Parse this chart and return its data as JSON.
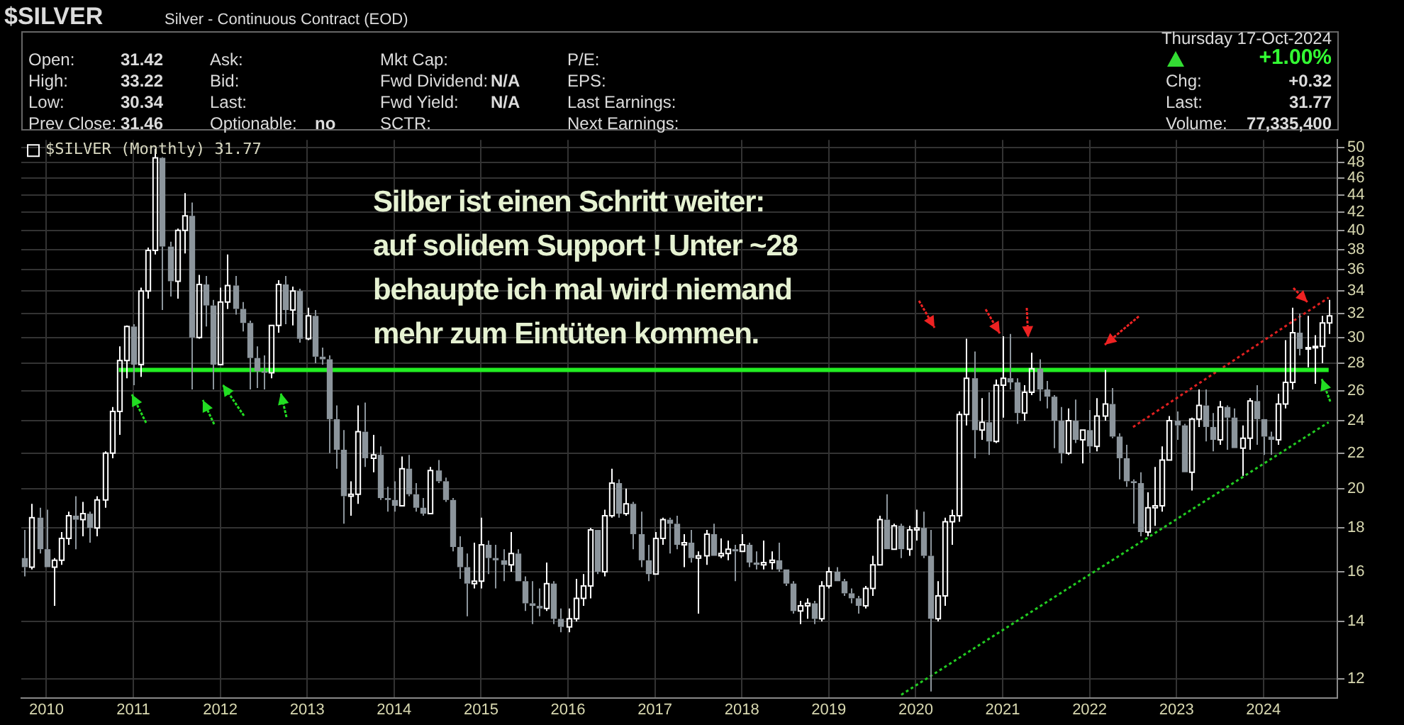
{
  "chart_data": {
    "type": "candlestick",
    "title": "$SILVER",
    "subtitle": "Silver - Continuous Contract (EOD)",
    "annotations": [
      "Silber ist einen Schritt weiter:\nauf solidem Support ! Unter ~28\nbehaupte ich mal wird niemand\nmehr zum Eintüten kommen.",
      "Open:",
      "31.42",
      "High:",
      "33.22",
      "Low:",
      "30.34",
      "Prev Close:",
      "31.46",
      "Ask:",
      "Bid:",
      "Last:",
      "Optionable:",
      "no",
      "Mkt Cap:",
      "Fwd Dividend:",
      "N/A",
      "Fwd Yield:",
      "N/A",
      "SCTR:",
      "P/E:",
      "EPS:",
      "Last Earnings:",
      "Next Earnings:",
      "Thursday 17-Oct-2024",
      "+1.00%",
      "Chg:",
      "+0.32",
      "Last:",
      "31.77",
      "Volume:",
      "77,335,400"
    ],
    "xlim": [
      "2009-09-17",
      "2024-11-07"
    ],
    "xticks": [
      {
        "value": "2010-01",
        "label": "2010"
      },
      {
        "value": "2011-01",
        "label": "2011"
      },
      {
        "value": "2012-01",
        "label": "2012"
      },
      {
        "value": "2013-01",
        "label": "2013"
      },
      {
        "value": "2014-01",
        "label": "2014"
      },
      {
        "value": "2015-01",
        "label": "2015"
      },
      {
        "value": "2016-01",
        "label": "2016"
      },
      {
        "value": "2017-01",
        "label": "2017"
      },
      {
        "value": "2018-01",
        "label": "2018"
      },
      {
        "value": "2019-01",
        "label": "2019"
      },
      {
        "value": "2020-01",
        "label": "2020"
      },
      {
        "value": "2021-01",
        "label": "2021"
      },
      {
        "value": "2022-01",
        "label": "2022"
      },
      {
        "value": "2023-01",
        "label": "2023"
      },
      {
        "value": "2024-01",
        "label": "2024"
      }
    ],
    "ylim": [
      11.4,
      51
    ],
    "yticks": [
      12,
      14,
      16,
      18,
      20,
      22,
      24,
      26,
      28,
      30,
      32,
      34,
      36,
      38,
      40,
      42,
      44,
      46,
      48,
      50
    ],
    "log": true,
    "grid": true,
    "legend": "top left",
    "marker": "none",
    "series": [
      {
        "name": "$SILVER (Monthly) 31.77",
        "x": [
          "2009-10",
          "2009-11",
          "2009-12",
          "2010-01",
          "2010-02",
          "2010-03",
          "2010-04",
          "2010-05",
          "2010-06",
          "2010-07",
          "2010-08",
          "2010-09",
          "2010-10",
          "2010-11",
          "2010-12",
          "2011-01",
          "2011-02",
          "2011-03",
          "2011-04",
          "2011-05",
          "2011-06",
          "2011-07",
          "2011-08",
          "2011-09",
          "2011-10",
          "2011-11",
          "2011-12",
          "2012-01",
          "2012-02",
          "2012-03",
          "2012-04",
          "2012-05",
          "2012-06",
          "2012-07",
          "2012-08",
          "2012-09",
          "2012-10",
          "2012-11",
          "2012-12",
          "2013-01",
          "2013-02",
          "2013-03",
          "2013-04",
          "2013-05",
          "2013-06",
          "2013-07",
          "2013-08",
          "2013-09",
          "2013-10",
          "2013-11",
          "2013-12",
          "2014-01",
          "2014-02",
          "2014-03",
          "2014-04",
          "2014-05",
          "2014-06",
          "2014-07",
          "2014-08",
          "2014-09",
          "2014-10",
          "2014-11",
          "2014-12",
          "2015-01",
          "2015-02",
          "2015-03",
          "2015-04",
          "2015-05",
          "2015-06",
          "2015-07",
          "2015-08",
          "2015-09",
          "2015-10",
          "2015-11",
          "2015-12",
          "2016-01",
          "2016-02",
          "2016-03",
          "2016-04",
          "2016-05",
          "2016-06",
          "2016-07",
          "2016-08",
          "2016-09",
          "2016-10",
          "2016-11",
          "2016-12",
          "2017-01",
          "2017-02",
          "2017-03",
          "2017-04",
          "2017-05",
          "2017-06",
          "2017-07",
          "2017-08",
          "2017-09",
          "2017-10",
          "2017-11",
          "2017-12",
          "2018-01",
          "2018-02",
          "2018-03",
          "2018-04",
          "2018-05",
          "2018-06",
          "2018-07",
          "2018-08",
          "2018-09",
          "2018-10",
          "2018-11",
          "2018-12",
          "2019-01",
          "2019-02",
          "2019-03",
          "2019-04",
          "2019-05",
          "2019-06",
          "2019-07",
          "2019-08",
          "2019-09",
          "2019-10",
          "2019-11",
          "2019-12",
          "2020-01",
          "2020-02",
          "2020-03",
          "2020-04",
          "2020-05",
          "2020-06",
          "2020-07",
          "2020-08",
          "2020-09",
          "2020-10",
          "2020-11",
          "2020-12",
          "2021-01",
          "2021-02",
          "2021-03",
          "2021-04",
          "2021-05",
          "2021-06",
          "2021-07",
          "2021-08",
          "2021-09",
          "2021-10",
          "2021-11",
          "2021-12",
          "2022-01",
          "2022-02",
          "2022-03",
          "2022-04",
          "2022-05",
          "2022-06",
          "2022-07",
          "2022-08",
          "2022-09",
          "2022-10",
          "2022-11",
          "2022-12",
          "2023-01",
          "2023-02",
          "2023-03",
          "2023-04",
          "2023-05",
          "2023-06",
          "2023-07",
          "2023-08",
          "2023-09",
          "2023-10",
          "2023-11",
          "2023-12",
          "2024-01",
          "2024-02",
          "2024-03",
          "2024-04",
          "2024-05",
          "2024-06",
          "2024-07",
          "2024-08",
          "2024-09",
          "2024-10"
        ],
        "ohlc": [
          [
            16.6,
            17.9,
            15.8,
            16.2
          ],
          [
            16.2,
            19.2,
            16.1,
            18.5
          ],
          [
            18.5,
            19.0,
            16.8,
            17.0
          ],
          [
            17.0,
            18.9,
            16.2,
            16.2
          ],
          [
            16.2,
            16.6,
            14.6,
            16.5
          ],
          [
            16.5,
            17.8,
            16.3,
            17.5
          ],
          [
            17.5,
            18.8,
            17.2,
            18.6
          ],
          [
            18.6,
            19.6,
            17.0,
            18.4
          ],
          [
            18.4,
            19.3,
            17.6,
            18.7
          ],
          [
            18.7,
            18.8,
            17.3,
            18.0
          ],
          [
            18.0,
            19.6,
            17.6,
            19.4
          ],
          [
            19.4,
            22.1,
            19.0,
            22.0
          ],
          [
            22.0,
            24.9,
            21.7,
            24.6
          ],
          [
            24.6,
            29.3,
            23.1,
            28.2
          ],
          [
            28.2,
            31.0,
            26.9,
            30.9
          ],
          [
            30.9,
            31.1,
            26.4,
            27.9
          ],
          [
            27.9,
            34.3,
            27.0,
            34.0
          ],
          [
            34.0,
            38.2,
            33.3,
            37.9
          ],
          [
            37.9,
            49.8,
            37.5,
            48.6
          ],
          [
            48.6,
            48.7,
            32.3,
            38.3
          ],
          [
            38.3,
            38.8,
            33.5,
            34.9
          ],
          [
            34.9,
            40.2,
            33.3,
            40.0
          ],
          [
            40.0,
            44.2,
            37.6,
            41.6
          ],
          [
            41.6,
            43.1,
            26.1,
            30.0
          ],
          [
            30.0,
            35.5,
            29.9,
            34.6
          ],
          [
            34.6,
            35.4,
            30.9,
            32.7
          ],
          [
            32.7,
            33.2,
            26.1,
            27.9
          ],
          [
            27.9,
            34.3,
            27.9,
            33.0
          ],
          [
            33.0,
            37.5,
            32.4,
            34.5
          ],
          [
            34.5,
            35.4,
            31.9,
            32.4
          ],
          [
            32.4,
            33.0,
            30.5,
            31.2
          ],
          [
            31.2,
            31.4,
            26.1,
            28.4
          ],
          [
            28.4,
            29.3,
            26.2,
            27.4
          ],
          [
            27.4,
            28.6,
            26.1,
            27.3
          ],
          [
            27.3,
            31.0,
            26.9,
            31.0
          ],
          [
            31.0,
            35.0,
            30.4,
            34.6
          ],
          [
            34.6,
            35.4,
            31.1,
            32.3
          ],
          [
            32.3,
            34.4,
            31.0,
            34.0
          ],
          [
            34.0,
            34.2,
            29.6,
            29.9
          ],
          [
            29.9,
            32.5,
            29.8,
            31.8
          ],
          [
            31.8,
            32.3,
            28.0,
            28.5
          ],
          [
            28.5,
            29.2,
            27.9,
            28.3
          ],
          [
            28.3,
            28.6,
            22.0,
            24.1
          ],
          [
            24.1,
            25.0,
            21.1,
            22.2
          ],
          [
            22.2,
            23.4,
            18.2,
            19.6
          ],
          [
            19.6,
            20.4,
            18.6,
            19.7
          ],
          [
            19.7,
            25.0,
            19.2,
            23.3
          ],
          [
            23.3,
            25.2,
            21.2,
            21.7
          ],
          [
            21.7,
            23.1,
            20.9,
            21.9
          ],
          [
            21.9,
            22.4,
            19.4,
            19.5
          ],
          [
            19.5,
            20.1,
            18.8,
            19.4
          ],
          [
            19.4,
            20.4,
            18.8,
            19.1
          ],
          [
            19.1,
            21.8,
            19.1,
            21.1
          ],
          [
            21.1,
            21.9,
            19.6,
            19.7
          ],
          [
            19.7,
            20.3,
            18.8,
            19.0
          ],
          [
            19.0,
            19.5,
            18.6,
            18.7
          ],
          [
            18.7,
            21.2,
            18.7,
            21.0
          ],
          [
            21.0,
            21.6,
            20.3,
            20.4
          ],
          [
            20.4,
            20.6,
            19.3,
            19.4
          ],
          [
            19.4,
            19.5,
            16.9,
            17.1
          ],
          [
            17.1,
            17.6,
            15.7,
            16.2
          ],
          [
            16.2,
            16.8,
            14.2,
            15.5
          ],
          [
            15.5,
            17.3,
            15.3,
            15.6
          ],
          [
            15.6,
            18.5,
            15.3,
            17.2
          ],
          [
            17.2,
            17.4,
            15.9,
            16.6
          ],
          [
            16.6,
            17.2,
            15.3,
            16.5
          ],
          [
            16.5,
            17.0,
            15.6,
            16.3
          ],
          [
            16.3,
            17.8,
            16.0,
            16.8
          ],
          [
            16.8,
            17.0,
            15.6,
            15.6
          ],
          [
            15.6,
            15.8,
            14.4,
            14.7
          ],
          [
            14.7,
            15.6,
            13.9,
            14.6
          ],
          [
            14.6,
            15.3,
            14.2,
            14.5
          ],
          [
            14.5,
            16.4,
            14.4,
            15.5
          ],
          [
            15.5,
            15.6,
            13.9,
            14.1
          ],
          [
            14.1,
            14.5,
            13.6,
            13.8
          ],
          [
            13.8,
            14.5,
            13.6,
            14.1
          ],
          [
            14.1,
            15.7,
            14.0,
            14.9
          ],
          [
            14.9,
            15.9,
            14.6,
            15.4
          ],
          [
            15.4,
            18.0,
            14.9,
            17.9
          ],
          [
            17.9,
            17.9,
            15.9,
            16.0
          ],
          [
            16.0,
            18.9,
            15.8,
            18.6
          ],
          [
            18.6,
            21.1,
            18.5,
            20.3
          ],
          [
            20.3,
            20.5,
            18.5,
            18.7
          ],
          [
            18.7,
            20.0,
            18.6,
            19.2
          ],
          [
            19.2,
            19.3,
            17.0,
            17.7
          ],
          [
            17.7,
            18.8,
            16.2,
            16.5
          ],
          [
            16.5,
            17.2,
            15.6,
            15.9
          ],
          [
            15.9,
            17.8,
            15.9,
            17.5
          ],
          [
            17.5,
            18.5,
            17.2,
            18.4
          ],
          [
            18.4,
            18.5,
            16.8,
            18.2
          ],
          [
            18.2,
            18.6,
            17.0,
            17.2
          ],
          [
            17.2,
            17.7,
            16.2,
            17.3
          ],
          [
            17.3,
            17.9,
            16.4,
            16.6
          ],
          [
            16.6,
            16.9,
            14.3,
            16.7
          ],
          [
            16.7,
            17.9,
            16.3,
            17.7
          ],
          [
            17.7,
            18.2,
            16.7,
            16.7
          ],
          [
            16.7,
            17.5,
            16.6,
            16.8
          ],
          [
            16.8,
            17.4,
            16.5,
            17.0
          ],
          [
            17.0,
            17.2,
            15.6,
            16.9
          ],
          [
            16.9,
            17.7,
            16.9,
            17.2
          ],
          [
            17.2,
            17.3,
            16.2,
            16.4
          ],
          [
            16.4,
            16.9,
            16.1,
            16.3
          ],
          [
            16.3,
            17.4,
            16.1,
            16.4
          ],
          [
            16.4,
            16.9,
            16.1,
            16.5
          ],
          [
            16.5,
            17.3,
            16.0,
            16.1
          ],
          [
            16.1,
            16.1,
            15.4,
            15.5
          ],
          [
            15.5,
            15.6,
            14.3,
            14.4
          ],
          [
            14.4,
            14.8,
            13.9,
            14.6
          ],
          [
            14.6,
            14.9,
            14.1,
            14.7
          ],
          [
            14.7,
            14.8,
            13.9,
            14.1
          ],
          [
            14.1,
            15.6,
            14.0,
            15.4
          ],
          [
            15.4,
            16.2,
            15.3,
            16.0
          ],
          [
            16.0,
            16.2,
            15.6,
            15.6
          ],
          [
            15.6,
            15.7,
            15.0,
            15.1
          ],
          [
            15.1,
            15.3,
            14.7,
            14.9
          ],
          [
            14.9,
            15.0,
            14.3,
            14.6
          ],
          [
            14.6,
            15.4,
            14.5,
            15.3
          ],
          [
            15.3,
            16.7,
            15.0,
            16.3
          ],
          [
            16.3,
            18.6,
            16.3,
            18.4
          ],
          [
            18.4,
            19.7,
            17.0,
            17.0
          ],
          [
            17.0,
            18.2,
            17.0,
            18.1
          ],
          [
            18.1,
            18.2,
            16.6,
            17.0
          ],
          [
            17.0,
            18.1,
            16.7,
            17.9
          ],
          [
            17.9,
            18.9,
            17.4,
            18.0
          ],
          [
            18.0,
            18.8,
            16.6,
            16.7
          ],
          [
            16.7,
            17.9,
            11.6,
            14.1
          ],
          [
            14.1,
            15.6,
            14.0,
            15.0
          ],
          [
            15.0,
            18.5,
            14.6,
            18.3
          ],
          [
            18.3,
            18.9,
            17.2,
            18.6
          ],
          [
            18.6,
            24.6,
            18.3,
            24.4
          ],
          [
            24.4,
            29.9,
            23.7,
            26.9
          ],
          [
            26.9,
            28.9,
            21.7,
            23.4
          ],
          [
            23.4,
            25.5,
            22.8,
            23.9
          ],
          [
            23.9,
            25.9,
            21.9,
            22.7
          ],
          [
            22.7,
            26.8,
            22.6,
            26.4
          ],
          [
            26.4,
            30.1,
            24.2,
            26.9
          ],
          [
            26.9,
            30.3,
            26.1,
            26.6
          ],
          [
            26.6,
            26.9,
            23.8,
            24.5
          ],
          [
            24.5,
            26.4,
            24.0,
            25.9
          ],
          [
            25.9,
            28.8,
            25.7,
            27.6
          ],
          [
            27.6,
            28.3,
            25.3,
            26.1
          ],
          [
            26.1,
            26.7,
            24.8,
            25.6
          ],
          [
            25.6,
            25.7,
            22.3,
            24.0
          ],
          [
            24.0,
            24.9,
            21.4,
            22.0
          ],
          [
            22.0,
            24.8,
            21.9,
            24.0
          ],
          [
            24.0,
            25.4,
            22.6,
            22.8
          ],
          [
            22.8,
            23.4,
            21.4,
            23.4
          ],
          [
            23.4,
            24.7,
            22.0,
            22.4
          ],
          [
            22.4,
            25.5,
            22.1,
            24.3
          ],
          [
            24.3,
            27.5,
            24.0,
            25.1
          ],
          [
            25.1,
            26.2,
            22.9,
            23.0
          ],
          [
            23.0,
            23.2,
            20.5,
            21.7
          ],
          [
            21.7,
            22.5,
            20.1,
            20.4
          ],
          [
            20.4,
            20.5,
            18.2,
            20.3
          ],
          [
            20.3,
            20.9,
            17.6,
            17.8
          ],
          [
            17.8,
            19.8,
            17.6,
            19.0
          ],
          [
            19.0,
            21.2,
            18.1,
            19.1
          ],
          [
            19.1,
            22.4,
            18.8,
            21.6
          ],
          [
            21.6,
            24.3,
            21.6,
            24.0
          ],
          [
            24.0,
            24.6,
            22.8,
            23.7
          ],
          [
            23.7,
            23.8,
            20.9,
            20.9
          ],
          [
            20.9,
            24.2,
            19.9,
            24.1
          ],
          [
            24.1,
            26.1,
            23.6,
            25.0
          ],
          [
            25.0,
            26.1,
            22.7,
            23.6
          ],
          [
            23.6,
            24.5,
            22.1,
            22.8
          ],
          [
            22.8,
            25.3,
            22.5,
            24.9
          ],
          [
            24.9,
            25.0,
            22.2,
            24.2
          ],
          [
            24.2,
            24.8,
            22.3,
            22.3
          ],
          [
            22.3,
            23.7,
            20.7,
            22.9
          ],
          [
            22.9,
            25.5,
            22.2,
            25.3
          ],
          [
            25.3,
            26.4,
            22.5,
            24.1
          ],
          [
            24.1,
            24.1,
            21.9,
            23.0
          ],
          [
            23.0,
            23.3,
            21.9,
            22.8
          ],
          [
            22.8,
            25.8,
            22.5,
            25.1
          ],
          [
            25.1,
            29.8,
            24.8,
            26.6
          ],
          [
            26.6,
            32.5,
            26.1,
            30.4
          ],
          [
            30.4,
            32.0,
            28.6,
            29.1
          ],
          [
            29.1,
            31.8,
            27.7,
            29.2
          ],
          [
            29.2,
            30.2,
            26.5,
            29.3
          ],
          [
            29.3,
            31.8,
            28.0,
            31.2
          ],
          [
            31.2,
            33.2,
            30.3,
            31.8
          ]
        ],
        "colors": [
          "#8c959c",
          "#ffffff",
          "#8c959c",
          "#8c959c",
          "#ffffff",
          "#ffffff",
          "#ffffff",
          "#8c959c",
          "#ffffff",
          "#8c959c",
          "#ffffff",
          "#ffffff",
          "#ffffff",
          "#ffffff",
          "#ffffff",
          "#8c959c",
          "#ffffff",
          "#ffffff",
          "#ffffff",
          "#8c959c",
          "#8c959c",
          "#ffffff",
          "#ffffff",
          "#8c959c",
          "#ffffff",
          "#8c959c",
          "#8c959c",
          "#ffffff",
          "#ffffff",
          "#8c959c",
          "#8c959c",
          "#8c959c",
          "#8c959c",
          "#8c959c",
          "#ffffff",
          "#ffffff",
          "#8c959c",
          "#ffffff",
          "#8c959c",
          "#ffffff",
          "#8c959c",
          "#8c959c",
          "#8c959c",
          "#8c959c",
          "#8c959c",
          "#ffffff",
          "#ffffff",
          "#8c959c",
          "#ffffff",
          "#8c959c",
          "#8c959c",
          "#8c959c",
          "#ffffff",
          "#8c959c",
          "#8c959c",
          "#8c959c",
          "#ffffff",
          "#8c959c",
          "#8c959c",
          "#8c959c",
          "#8c959c",
          "#8c959c",
          "#ffffff",
          "#ffffff",
          "#8c959c",
          "#8c959c",
          "#8c959c",
          "#ffffff",
          "#8c959c",
          "#8c959c",
          "#8c959c",
          "#8c959c",
          "#ffffff",
          "#8c959c",
          "#8c959c",
          "#ffffff",
          "#ffffff",
          "#ffffff",
          "#ffffff",
          "#8c959c",
          "#ffffff",
          "#ffffff",
          "#8c959c",
          "#ffffff",
          "#8c959c",
          "#8c959c",
          "#8c959c",
          "#ffffff",
          "#ffffff",
          "#8c959c",
          "#8c959c",
          "#ffffff",
          "#8c959c",
          "#ffffff",
          "#ffffff",
          "#8c959c",
          "#ffffff",
          "#ffffff",
          "#8c959c",
          "#ffffff",
          "#8c959c",
          "#8c959c",
          "#ffffff",
          "#ffffff",
          "#8c959c",
          "#8c959c",
          "#8c959c",
          "#ffffff",
          "#ffffff",
          "#8c959c",
          "#ffffff",
          "#ffffff",
          "#8c959c",
          "#8c959c",
          "#8c959c",
          "#8c959c",
          "#ffffff",
          "#ffffff",
          "#ffffff",
          "#8c959c",
          "#ffffff",
          "#8c959c",
          "#ffffff",
          "#ffffff",
          "#8c959c",
          "#8c959c",
          "#ffffff",
          "#ffffff",
          "#ffffff",
          "#ffffff",
          "#ffffff",
          "#8c959c",
          "#ffffff",
          "#8c959c",
          "#ffffff",
          "#ffffff",
          "#8c959c",
          "#8c959c",
          "#ffffff",
          "#ffffff",
          "#8c959c",
          "#8c959c",
          "#8c959c",
          "#8c959c",
          "#ffffff",
          "#8c959c",
          "#ffffff",
          "#8c959c",
          "#ffffff",
          "#ffffff",
          "#8c959c",
          "#8c959c",
          "#8c959c",
          "#8c959c",
          "#8c959c",
          "#ffffff",
          "#ffffff",
          "#ffffff",
          "#ffffff",
          "#8c959c",
          "#8c959c",
          "#ffffff",
          "#ffffff",
          "#8c959c",
          "#8c959c",
          "#ffffff",
          "#8c959c",
          "#8c959c",
          "#ffffff",
          "#ffffff",
          "#8c959c",
          "#8c959c",
          "#8c959c",
          "#ffffff",
          "#ffffff",
          "#ffffff",
          "#8c959c",
          "#ffffff",
          "#ffffff",
          "#ffffff",
          "#ffffff"
        ]
      },
      {
        "type": "line",
        "x": [
          "2010-11",
          "2024-10"
        ],
        "values": [
          27.5,
          27.5
        ],
        "color": "#22ee22",
        "line_style": "solid"
      },
      {
        "type": "line",
        "x": [
          "2022-07",
          "2024-10"
        ],
        "values": [
          23.6,
          33.4
        ],
        "color": "#e02020",
        "line_style": "dotted"
      },
      {
        "type": "line",
        "x": [
          "2019-11",
          "2024-10"
        ],
        "values": [
          11.5,
          23.9
        ],
        "color": "#22cc22",
        "line_style": "dotted"
      }
    ]
  }
}
